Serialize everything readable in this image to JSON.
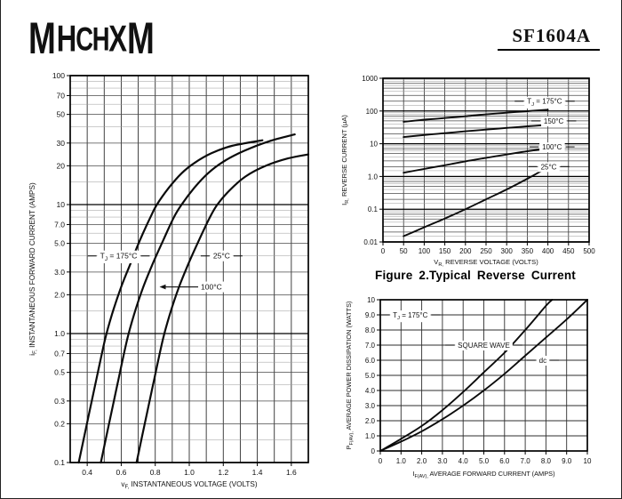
{
  "page": {
    "logo_text": "MHCHXM",
    "part_number": "SF1604A"
  },
  "colors": {
    "background": "#ffffff",
    "ink": "#000000",
    "grid_major": "#000000",
    "grid_mid": "#4a4a4a",
    "grid_minor": "#9a9a9a"
  },
  "chart_data": [
    {
      "id": "fig1",
      "type": "line",
      "title": "",
      "xlabel": {
        "pre": "v",
        "sub": "F,",
        "text": " INSTANTANEOUS VOLTAGE (VOLTS)"
      },
      "ylabel": {
        "pre": "i",
        "sub": "F,",
        "text": " INSTANTANEOUS FORWARD CURRENT (AMPS)"
      },
      "xscale": "linear",
      "yscale": "log",
      "xlim": [
        0.3,
        1.7
      ],
      "ylim": [
        0.1,
        100
      ],
      "xgrid_step": 0.1,
      "xticks": [
        {
          "v": 0.4,
          "l": "0.4"
        },
        {
          "v": 0.6,
          "l": "0.6"
        },
        {
          "v": 0.8,
          "l": "0.8"
        },
        {
          "v": 1.0,
          "l": "1.0"
        },
        {
          "v": 1.2,
          "l": "1.2"
        },
        {
          "v": 1.4,
          "l": "1.4"
        },
        {
          "v": 1.6,
          "l": "1.6"
        }
      ],
      "yticks": [
        {
          "v": 100,
          "l": "100"
        },
        {
          "v": 70,
          "l": "70"
        },
        {
          "v": 50,
          "l": "50"
        },
        {
          "v": 30,
          "l": "30"
        },
        {
          "v": 20,
          "l": "20"
        },
        {
          "v": 10,
          "l": "10"
        },
        {
          "v": 7,
          "l": "7.0"
        },
        {
          "v": 5,
          "l": "5.0"
        },
        {
          "v": 3,
          "l": "3.0"
        },
        {
          "v": 2,
          "l": "2.0"
        },
        {
          "v": 1,
          "l": "1.0"
        },
        {
          "v": 0.7,
          "l": "0.7"
        },
        {
          "v": 0.5,
          "l": "0.5"
        },
        {
          "v": 0.3,
          "l": "0.3"
        },
        {
          "v": 0.2,
          "l": "0.2"
        },
        {
          "v": 0.1,
          "l": "0.1"
        }
      ],
      "series": [
        {
          "name": "TJ = 175°C",
          "points": [
            [
              0.35,
              0.1
            ],
            [
              0.405,
              0.22
            ],
            [
              0.455,
              0.45
            ],
            [
              0.505,
              0.9
            ],
            [
              0.545,
              1.4
            ],
            [
              0.6,
              2.3
            ],
            [
              0.655,
              3.5
            ],
            [
              0.71,
              5.3
            ],
            [
              0.77,
              7.9
            ],
            [
              0.81,
              10
            ],
            [
              0.88,
              13.5
            ],
            [
              0.955,
              17.5
            ],
            [
              1.03,
              21
            ],
            [
              1.13,
              25
            ],
            [
              1.25,
              28.5
            ],
            [
              1.43,
              31.5
            ]
          ]
        },
        {
          "name": "100°C",
          "points": [
            [
              0.48,
              0.1
            ],
            [
              0.535,
              0.22
            ],
            [
              0.585,
              0.45
            ],
            [
              0.635,
              0.9
            ],
            [
              0.675,
              1.4
            ],
            [
              0.73,
              2.3
            ],
            [
              0.79,
              3.6
            ],
            [
              0.85,
              5.4
            ],
            [
              0.91,
              8.0
            ],
            [
              0.955,
              10
            ],
            [
              1.03,
              13.5
            ],
            [
              1.11,
              17.5
            ],
            [
              1.2,
              21.5
            ],
            [
              1.32,
              26
            ],
            [
              1.47,
              31
            ],
            [
              1.62,
              35
            ]
          ]
        },
        {
          "name": "25°C",
          "points": [
            [
              0.69,
              0.1
            ],
            [
              0.745,
              0.22
            ],
            [
              0.795,
              0.45
            ],
            [
              0.845,
              0.9
            ],
            [
              0.885,
              1.4
            ],
            [
              0.94,
              2.3
            ],
            [
              1.0,
              3.6
            ],
            [
              1.06,
              5.4
            ],
            [
              1.12,
              7.9
            ],
            [
              1.165,
              10
            ],
            [
              1.24,
              13
            ],
            [
              1.33,
              16.5
            ],
            [
              1.45,
              20
            ],
            [
              1.58,
              22.8
            ],
            [
              1.7,
              24.5
            ]
          ]
        }
      ],
      "annotations": [
        {
          "pre": "T",
          "sub": "J",
          "text": " = 175°C",
          "x": 0.585,
          "y": 4.0,
          "dashes": true
        },
        {
          "text": "25°C",
          "x": 1.19,
          "y": 4.0,
          "dashes": true
        },
        {
          "text": "100°C",
          "x": 1.13,
          "y": 2.3,
          "arrow_to_x": 0.825
        }
      ]
    },
    {
      "id": "fig2",
      "type": "line",
      "caption": "Figure 2.Typical Reverse Current",
      "xlabel": {
        "pre": "V",
        "sub": "R,",
        "text": " REVERSE VOLTAGE (VOLTS)"
      },
      "ylabel": {
        "pre": "I",
        "sub": "R,",
        "text": " REVERSE CURRENT (µA)"
      },
      "xscale": "linear",
      "yscale": "log",
      "xlim": [
        0,
        500
      ],
      "ylim": [
        0.01,
        1000
      ],
      "xgrid_step": 50,
      "xticks": [
        {
          "v": 0,
          "l": "0"
        },
        {
          "v": 50,
          "l": "50"
        },
        {
          "v": 100,
          "l": "100"
        },
        {
          "v": 150,
          "l": "150"
        },
        {
          "v": 200,
          "l": "200"
        },
        {
          "v": 250,
          "l": "250"
        },
        {
          "v": 300,
          "l": "300"
        },
        {
          "v": 350,
          "l": "350"
        },
        {
          "v": 400,
          "l": "400"
        },
        {
          "v": 450,
          "l": "450"
        },
        {
          "v": 500,
          "l": "500"
        }
      ],
      "yticks": [
        {
          "v": 1000,
          "l": "1000"
        },
        {
          "v": 100,
          "l": "100"
        },
        {
          "v": 10,
          "l": "10"
        },
        {
          "v": 1,
          "l": "1.0"
        },
        {
          "v": 0.1,
          "l": "0.1"
        },
        {
          "v": 0.01,
          "l": "0.01"
        }
      ],
      "series": [
        {
          "name": "TJ = 175°C",
          "points": [
            [
              50,
              47
            ],
            [
              100,
              54
            ],
            [
              150,
              61
            ],
            [
              200,
              69
            ],
            [
              250,
              79
            ],
            [
              300,
              89
            ],
            [
              350,
              99
            ],
            [
              400,
              110
            ]
          ]
        },
        {
          "name": "150°C",
          "points": [
            [
              50,
              16
            ],
            [
              100,
              18.5
            ],
            [
              150,
              21
            ],
            [
              200,
              24
            ],
            [
              250,
              27
            ],
            [
              300,
              30.5
            ],
            [
              350,
              34
            ],
            [
              400,
              38
            ]
          ]
        },
        {
          "name": "100°C",
          "points": [
            [
              50,
              1.3
            ],
            [
              100,
              1.7
            ],
            [
              150,
              2.2
            ],
            [
              200,
              2.9
            ],
            [
              250,
              3.7
            ],
            [
              300,
              4.7
            ],
            [
              350,
              5.9
            ],
            [
              400,
              7.2
            ]
          ]
        },
        {
          "name": "25°C",
          "points": [
            [
              50,
              0.015
            ],
            [
              100,
              0.028
            ],
            [
              150,
              0.052
            ],
            [
              200,
              0.1
            ],
            [
              250,
              0.2
            ],
            [
              300,
              0.4
            ],
            [
              350,
              0.85
            ],
            [
              400,
              1.9
            ]
          ]
        }
      ],
      "annotations": [
        {
          "pre": "T",
          "sub": "J",
          "text": " = 175°C",
          "x": 392,
          "y": 200,
          "dashes": true
        },
        {
          "text": "150°C",
          "x": 414,
          "y": 50,
          "dashes": true
        },
        {
          "text": "100°C",
          "x": 410,
          "y": 8,
          "dashes": true
        },
        {
          "text": "25°C",
          "x": 402,
          "y": 2,
          "dashes": true
        }
      ]
    },
    {
      "id": "fig3",
      "type": "line",
      "xlabel": {
        "pre": "I",
        "sub": "F(AV),",
        "text": " AVERAGE FORWARD CURRENT (AMPS)"
      },
      "ylabel": {
        "pre": "P",
        "sub": "F(AV),",
        "text": " AVERAGE POWER DISSIPATION (WATTS)"
      },
      "xscale": "linear",
      "yscale": "linear",
      "xlim": [
        0,
        10
      ],
      "ylim": [
        0,
        10
      ],
      "xgrid_step": 1,
      "ygrid_step": 1,
      "xticks": [
        {
          "v": 0,
          "l": "0"
        },
        {
          "v": 1,
          "l": "1.0"
        },
        {
          "v": 2,
          "l": "2.0"
        },
        {
          "v": 3,
          "l": "3.0"
        },
        {
          "v": 4,
          "l": "4.0"
        },
        {
          "v": 5,
          "l": "5.0"
        },
        {
          "v": 6,
          "l": "6.0"
        },
        {
          "v": 7,
          "l": "7.0"
        },
        {
          "v": 8,
          "l": "8.0"
        },
        {
          "v": 9,
          "l": "9.0"
        },
        {
          "v": 10,
          "l": "10"
        }
      ],
      "yticks": [
        {
          "v": 10,
          "l": "10"
        },
        {
          "v": 9,
          "l": "9.0"
        },
        {
          "v": 8,
          "l": "8.0"
        },
        {
          "v": 7,
          "l": "7.0"
        },
        {
          "v": 6,
          "l": "6.0"
        },
        {
          "v": 5,
          "l": "5.0"
        },
        {
          "v": 4,
          "l": "4.0"
        },
        {
          "v": 3,
          "l": "3.0"
        },
        {
          "v": 2,
          "l": "2.0"
        },
        {
          "v": 1,
          "l": "1.0"
        },
        {
          "v": 0,
          "l": "0"
        }
      ],
      "series": [
        {
          "name": "SQUARE WAVE",
          "points": [
            [
              0,
              0
            ],
            [
              1,
              0.8
            ],
            [
              2,
              1.65
            ],
            [
              3,
              2.7
            ],
            [
              4,
              3.9
            ],
            [
              5,
              5.2
            ],
            [
              6,
              6.5
            ],
            [
              7,
              8.0
            ],
            [
              8,
              9.6
            ],
            [
              8.3,
              10
            ]
          ]
        },
        {
          "name": "dc",
          "points": [
            [
              0,
              0
            ],
            [
              1,
              0.62
            ],
            [
              2,
              1.3
            ],
            [
              3,
              2.1
            ],
            [
              4,
              3.0
            ],
            [
              5,
              4.0
            ],
            [
              6,
              5.1
            ],
            [
              7,
              6.3
            ],
            [
              8,
              7.5
            ],
            [
              9,
              8.7
            ],
            [
              10,
              10
            ]
          ]
        }
      ],
      "annotations": [
        {
          "pre": "T",
          "sub": "J",
          "text": " = 175°C",
          "x": 1.45,
          "y": 9.0,
          "dashes": true
        },
        {
          "text": "SQUARE WAVE",
          "x": 5.0,
          "y": 7.0,
          "dashes": true
        },
        {
          "text": "dc",
          "x": 7.85,
          "y": 6.0,
          "dashes": true
        }
      ]
    }
  ]
}
